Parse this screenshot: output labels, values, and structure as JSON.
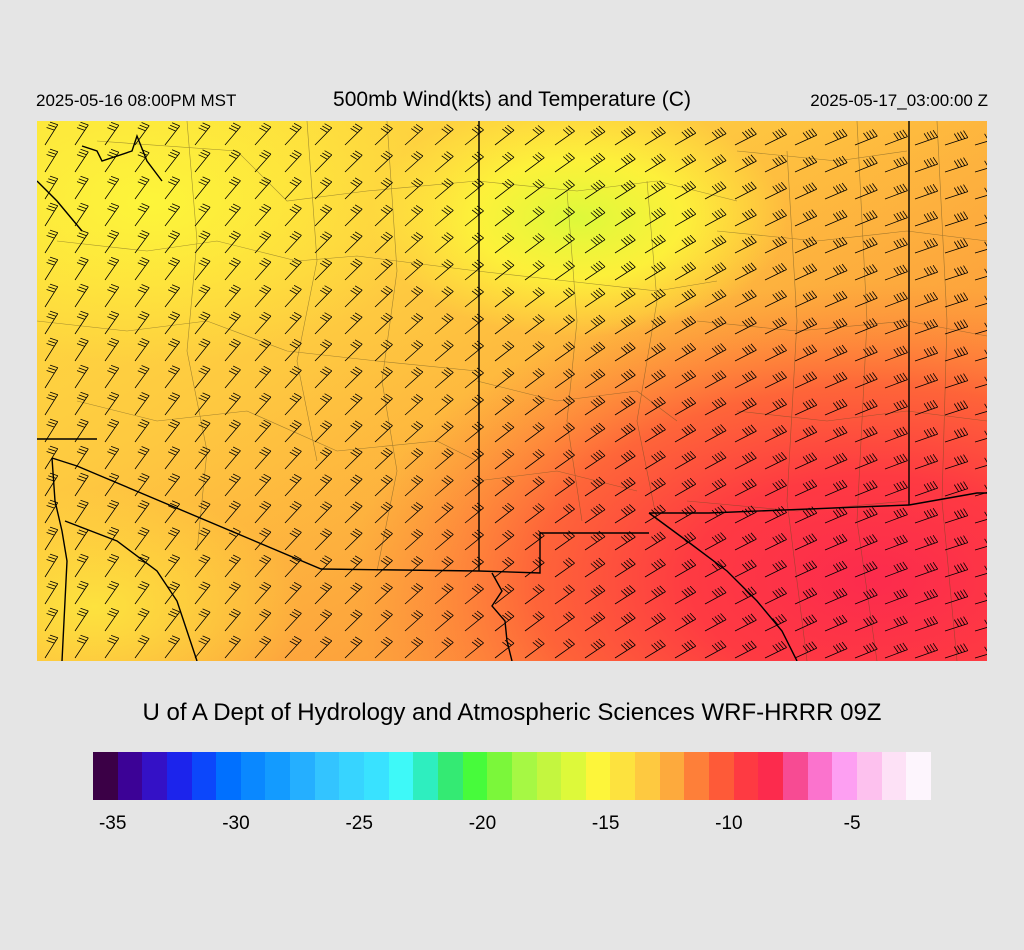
{
  "header": {
    "valid_local": "2025-05-16 08:00PM MST",
    "title": "500mb Wind(kts) and Temperature (C)",
    "valid_utc": "2025-05-17_03:00:00 Z"
  },
  "credit": "U of A Dept of Hydrology and Atmospheric Sciences WRF-HRRR 09Z",
  "map": {
    "field": "500mb temperature shading with wind barbs",
    "colors": {
      "frame_background": "#e5e5e5",
      "border_line": "#000000"
    }
  },
  "colorbar": {
    "colors": [
      "#3b0046",
      "#3c0296",
      "#3411c6",
      "#1c24ec",
      "#0c47fb",
      "#0070ff",
      "#0a88ff",
      "#139bff",
      "#25afff",
      "#33c4ff",
      "#37d4ff",
      "#39e2ff",
      "#3ef9f8",
      "#2eeebf",
      "#34ea73",
      "#47fb3b",
      "#7bf73a",
      "#a6f844",
      "#c4f63f",
      "#ddf93a",
      "#fdf53a",
      "#fde23e",
      "#fec940",
      "#fdaa3d",
      "#fe7f39",
      "#fe5a38",
      "#fe3a42",
      "#fc2b4d",
      "#f74b93",
      "#fb73cd",
      "#fd9ff2",
      "#fdc1ee",
      "#fde1f6",
      "#fdf5fd"
    ],
    "tick_labels": [
      {
        "label": "-35",
        "index": 1
      },
      {
        "label": "-30",
        "index": 6
      },
      {
        "label": "-25",
        "index": 11
      },
      {
        "label": "-20",
        "index": 16
      },
      {
        "label": "-15",
        "index": 21
      },
      {
        "label": "-10",
        "index": 26
      },
      {
        "label": "-5",
        "index": 31
      }
    ]
  }
}
